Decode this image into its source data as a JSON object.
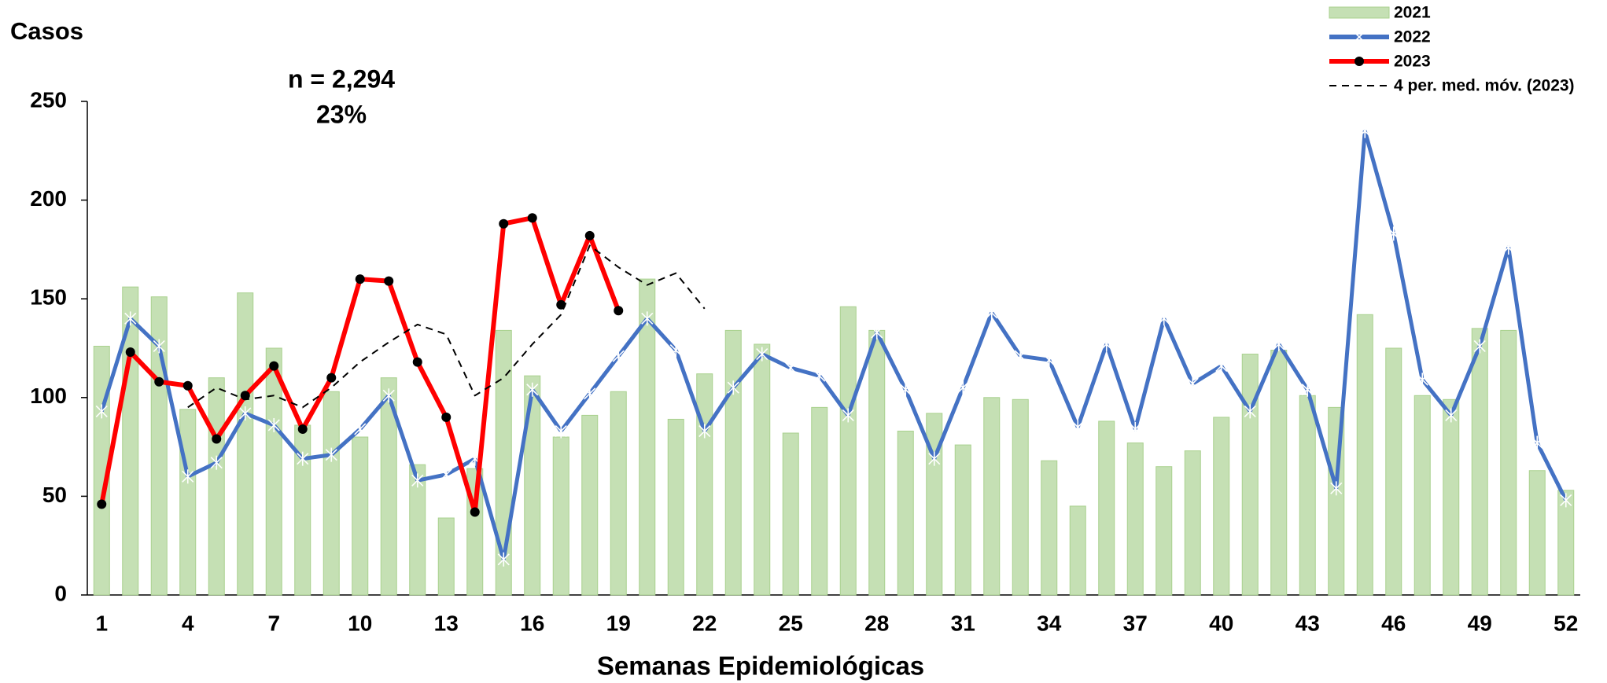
{
  "chart_data": {
    "type": "bar_line",
    "ylabel": "Casos",
    "xlabel": "Semanas Epidemiológicas",
    "annotations": [
      "n = 2,294",
      "23%"
    ],
    "categories": [
      1,
      null,
      null,
      4,
      null,
      null,
      7,
      null,
      null,
      10,
      null,
      null,
      13,
      null,
      null,
      16,
      null,
      null,
      19,
      null,
      null,
      22,
      null,
      null,
      25,
      null,
      null,
      28,
      null,
      null,
      31,
      null,
      null,
      34,
      null,
      null,
      37,
      null,
      null,
      40,
      null,
      null,
      43,
      null,
      null,
      46,
      null,
      null,
      49,
      null,
      null,
      52
    ],
    "series": [
      {
        "name": "2021",
        "type": "bar",
        "color": "#c5e0b4",
        "values": [
          126,
          156,
          151,
          94,
          110,
          153,
          125,
          86,
          103,
          80,
          110,
          66,
          39,
          64,
          134,
          111,
          80,
          91,
          103,
          160,
          89,
          112,
          134,
          127,
          82,
          95,
          146,
          134,
          83,
          92,
          76,
          100,
          99,
          68,
          45,
          88,
          77,
          65,
          73,
          90,
          122,
          124,
          101,
          95,
          142,
          125,
          101,
          99,
          135,
          134,
          63,
          53
        ]
      },
      {
        "name": "2022",
        "type": "line",
        "color": "#4472c4",
        "marker": "star",
        "values": [
          93,
          140,
          126,
          60,
          67,
          92,
          86,
          69,
          71,
          84,
          101,
          58,
          61,
          69,
          18,
          104,
          83,
          102,
          121,
          140,
          124,
          83,
          105,
          122,
          115,
          111,
          91,
          133,
          104,
          69,
          105,
          143,
          121,
          119,
          85,
          127,
          84,
          140,
          107,
          116,
          93,
          127,
          104,
          54,
          235,
          183,
          109,
          91,
          126,
          176,
          77,
          48
        ]
      },
      {
        "name": "2023",
        "type": "line",
        "color": "#ff0000",
        "marker": "dot",
        "values": [
          46,
          123,
          108,
          106,
          79,
          101,
          116,
          84,
          110,
          160,
          159,
          118,
          90,
          42,
          188,
          191,
          147,
          182,
          144,
          null,
          null,
          null,
          null,
          null,
          null,
          null,
          null,
          null,
          null,
          null,
          null,
          null,
          null,
          null,
          null,
          null,
          null,
          null,
          null,
          null,
          null,
          null,
          null,
          null,
          null,
          null,
          null,
          null,
          null,
          null,
          null,
          null
        ]
      },
      {
        "name": "4 per. med. móv. (2023)",
        "type": "dashed",
        "color": "#000000",
        "values": [
          null,
          null,
          null,
          95,
          105,
          99,
          101,
          95,
          105,
          118,
          128,
          137,
          132,
          101,
          110,
          127,
          142,
          177,
          166,
          157,
          163,
          145,
          null,
          null,
          null,
          null,
          null,
          null,
          null,
          null,
          null,
          null,
          null,
          null,
          null,
          null,
          null,
          null,
          null,
          null,
          null,
          null,
          null,
          null,
          null,
          null,
          null,
          null,
          null,
          null,
          null,
          null
        ]
      }
    ],
    "ylim": [
      0,
      250
    ],
    "yticks": [
      0,
      50,
      100,
      150,
      200,
      250
    ],
    "grid": false,
    "legend": "top-right"
  }
}
